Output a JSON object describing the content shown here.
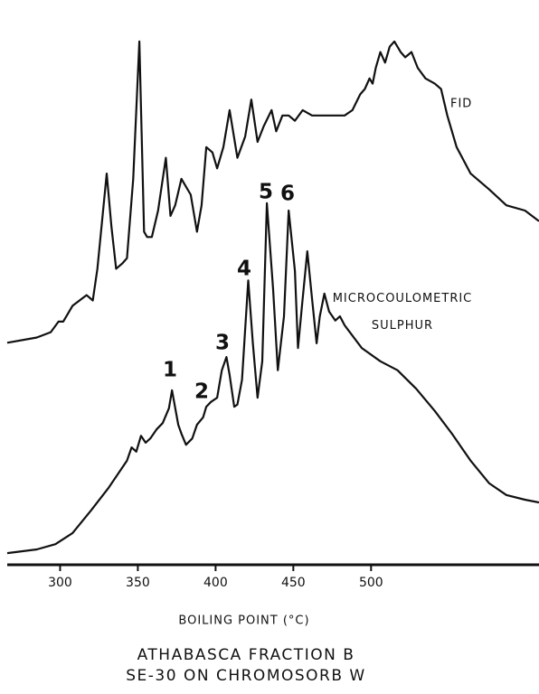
{
  "chart_data": {
    "type": "line",
    "title": "ATHABASCA FRACTION B",
    "subtitle": "SE-30 ON CHROMOSORB W",
    "x_label": "BOILING POINT (°C)",
    "xlim": [
      266,
      608
    ],
    "xticks": [
      300,
      350,
      400,
      450,
      500
    ],
    "ylim": [
      0,
      100
    ],
    "peak_labels": [
      "1",
      "2",
      "3",
      "4",
      "5",
      "6"
    ],
    "series": [
      {
        "name": "FID",
        "color": "#111111",
        "x": [
          266,
          285,
          294,
          299,
          302,
          308,
          317,
          321,
          324,
          330,
          333,
          336,
          340,
          343,
          347,
          351,
          354,
          356,
          359,
          363,
          368,
          371,
          374,
          378,
          384,
          388,
          391,
          394,
          398,
          401,
          405,
          409,
          414,
          419,
          423,
          427,
          431,
          436,
          439,
          443,
          447,
          451,
          456,
          462,
          471,
          483,
          488,
          493,
          496,
          499,
          501,
          503,
          506,
          509,
          512,
          515,
          519,
          522,
          526,
          530,
          535,
          541,
          545,
          549,
          555,
          564,
          576,
          587,
          599,
          608
        ],
        "values": [
          42,
          43,
          44,
          46,
          46,
          49,
          51,
          50,
          56,
          74,
          64,
          56,
          57,
          58,
          73,
          99,
          63,
          62,
          62,
          67,
          77,
          66,
          68,
          73,
          70,
          63,
          68,
          79,
          78,
          75,
          79,
          86,
          77,
          81,
          88,
          80,
          83,
          86,
          82,
          85,
          85,
          84,
          86,
          85,
          85,
          85,
          86,
          89,
          90,
          92,
          91,
          94,
          97,
          95,
          98,
          99,
          97,
          96,
          97,
          94,
          92,
          91,
          90,
          85,
          79,
          74,
          71,
          68,
          67,
          65
        ]
      },
      {
        "name": "MICROCOULOMETRIC SULPHUR",
        "color": "#111111",
        "x": [
          266,
          285,
          297,
          308,
          320,
          331,
          337,
          343,
          346,
          349,
          352,
          355,
          358,
          362,
          366,
          370,
          372,
          376,
          378,
          381,
          385,
          388,
          392,
          394,
          397,
          401,
          404,
          407,
          409,
          412,
          414,
          417,
          421,
          424,
          427,
          430,
          433,
          437,
          440,
          444,
          447,
          451,
          453,
          456,
          459,
          462,
          465,
          467,
          470,
          473,
          477,
          480,
          483,
          494,
          506,
          517,
          529,
          541,
          552,
          564,
          576,
          587,
          599,
          608
        ],
        "values": [
          2.2,
          2.9,
          3.9,
          6.0,
          10.3,
          14.5,
          17.1,
          19.7,
          22.2,
          21.4,
          24.4,
          23.1,
          23.9,
          25.6,
          26.8,
          29.6,
          33.0,
          26.5,
          24.8,
          22.7,
          23.9,
          26.5,
          27.9,
          29.9,
          30.8,
          31.6,
          36.8,
          39.3,
          35.9,
          29.9,
          30.3,
          35.0,
          53.8,
          41.9,
          31.6,
          38.5,
          68.4,
          52.1,
          36.8,
          47.0,
          67.0,
          55.6,
          41.0,
          50.4,
          59.3,
          50.4,
          41.9,
          47.0,
          51.3,
          47.9,
          46.2,
          47.0,
          45.3,
          41.0,
          38.5,
          36.8,
          33.3,
          29.1,
          24.8,
          19.7,
          15.4,
          13.2,
          12.3,
          11.8
        ]
      }
    ]
  }
}
